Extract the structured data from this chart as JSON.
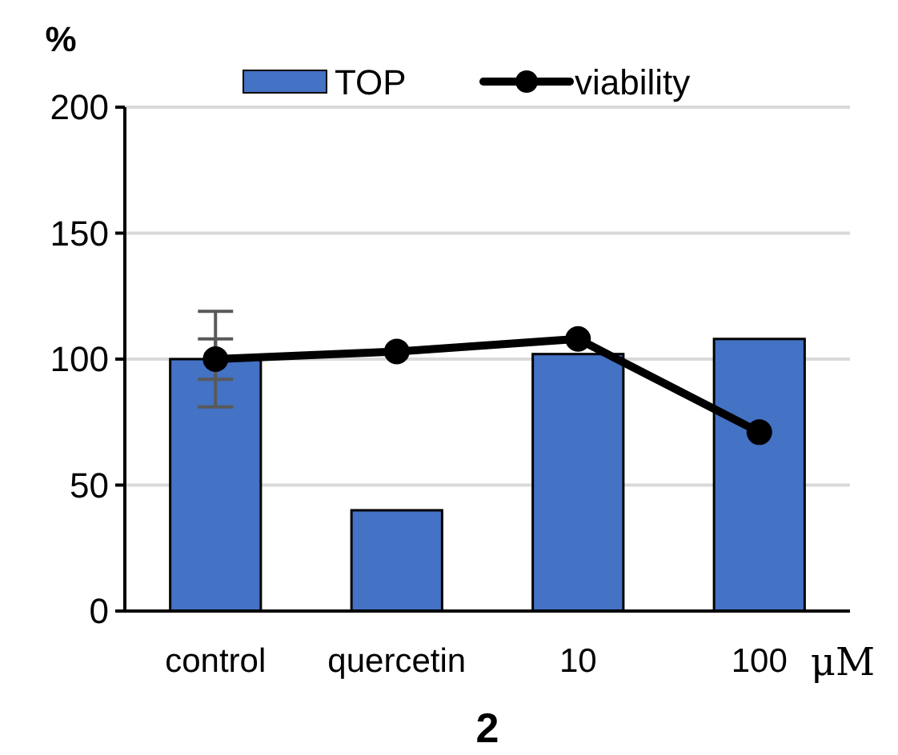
{
  "chart_data": {
    "type": "bar",
    "title": "2",
    "ylabel": "%",
    "annotations": [
      "μM"
    ],
    "categories": [
      "control",
      "quercetin",
      "10",
      "100"
    ],
    "series": [
      {
        "name": "TOP",
        "color": "#4472c4",
        "values": [
          100,
          40,
          102,
          108
        ],
        "errors": [
          19,
          null,
          null,
          null
        ]
      },
      {
        "name": "viability",
        "type": "line",
        "color": "#000000",
        "values": [
          100,
          103,
          108,
          71
        ],
        "errors": [
          8,
          null,
          null,
          null
        ]
      }
    ],
    "ylim": [
      0,
      200
    ],
    "yticks": [
      0,
      50,
      100,
      150,
      200
    ],
    "grid": "y",
    "legend": "top",
    "marker": "circle"
  }
}
